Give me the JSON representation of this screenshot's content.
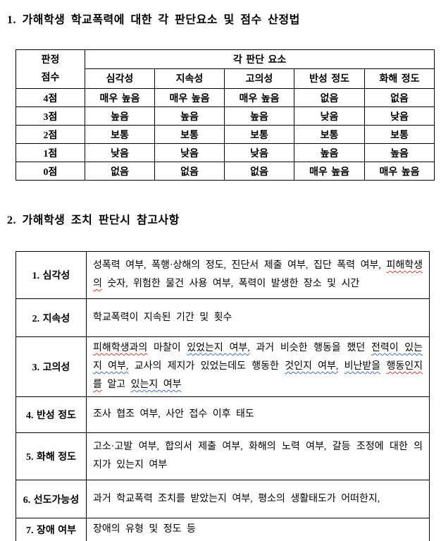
{
  "colors": {
    "text": "#000000",
    "border": "#000000",
    "background": "#ffffff",
    "spell_red": "#c8403a",
    "spell_blue": "#3f6cc8"
  },
  "section1": {
    "title": "1. 가해학생 학교폭력에 대한 각 판단요소 및 점수 산정법"
  },
  "table1": {
    "corner_line1": "판정",
    "corner_line2": "점수",
    "group_header": "각 판단 요소",
    "columns": [
      "심각성",
      "지속성",
      "고의성",
      "반성 정도",
      "화해 정도"
    ],
    "rows": [
      {
        "score": "4점",
        "values": [
          "매우 높음",
          "매우 높음",
          "매우 높음",
          "없음",
          "없음"
        ]
      },
      {
        "score": "3점",
        "values": [
          "높음",
          "높음",
          "높음",
          "낮음",
          "낮음"
        ]
      },
      {
        "score": "2점",
        "values": [
          "보통",
          "보통",
          "보통",
          "보통",
          "보통"
        ]
      },
      {
        "score": "1점",
        "values": [
          "낮음",
          "낮음",
          "낮음",
          "높음",
          "높음"
        ]
      },
      {
        "score": "0점",
        "values": [
          "없음",
          "없음",
          "없음",
          "매우 높음",
          "매우 높음"
        ]
      }
    ]
  },
  "section2": {
    "title": "2. 가해학생 조치 판단시 참고사항"
  },
  "table2": {
    "rows": [
      {
        "label": "1. 심각성",
        "segments": [
          {
            "t": "성폭력 여부, 폭행·상해의 정도, 진단서 제출 여부, 집단 폭력 여부, "
          },
          {
            "t": "피해학생의",
            "m": "red"
          },
          {
            "t": " 숫자, 위험한 물건 사용 여부, 폭력이 발생한 장소 및 시간"
          }
        ]
      },
      {
        "label": "2. 지속성",
        "segments": [
          {
            "t": "학교폭력이 지속된 기간 및 횟수"
          }
        ]
      },
      {
        "label": "3. 고의성",
        "segments": [
          {
            "t": "피해학생과의",
            "m": "red"
          },
          {
            "t": " 마찰이 "
          },
          {
            "t": "있었는지 여부,",
            "m": "blue"
          },
          {
            "t": " 과거 비슷한 행동을 했던 "
          },
          {
            "t": "전력이 있는지 여부,",
            "m": "blue"
          },
          {
            "t": " 교사의 제지가 있었는데도 행동한 "
          },
          {
            "t": "것인지 여부,",
            "m": "blue"
          },
          {
            "t": " "
          },
          {
            "t": "비난받을",
            "m": "blue"
          },
          {
            "t": " "
          },
          {
            "t": "행동인지를",
            "m": "red"
          },
          {
            "t": " 알고 "
          },
          {
            "t": "있는지 여부",
            "m": "blue"
          }
        ]
      },
      {
        "label": "4. 반성 정도",
        "segments": [
          {
            "t": "조사 협조 여부, 사안 접수 이후 태도"
          }
        ]
      },
      {
        "label": "5. 화해 정도",
        "segments": [
          {
            "t": "고소·고발 여부, 합의서 제출 여부, 화해의 노력 여부, 갈등 조정에 대한 의지가 있는지 여부"
          }
        ]
      },
      {
        "label": "6. 선도가능성",
        "segments": [
          {
            "t": "과거 학교폭력 조치를 받았는지 여부, 평소의 생활태도가 어떠한지,"
          }
        ]
      },
      {
        "label": "7. 장애 여부",
        "segments": [
          {
            "t": "장애의 유형 및 정도 등"
          }
        ]
      }
    ]
  }
}
